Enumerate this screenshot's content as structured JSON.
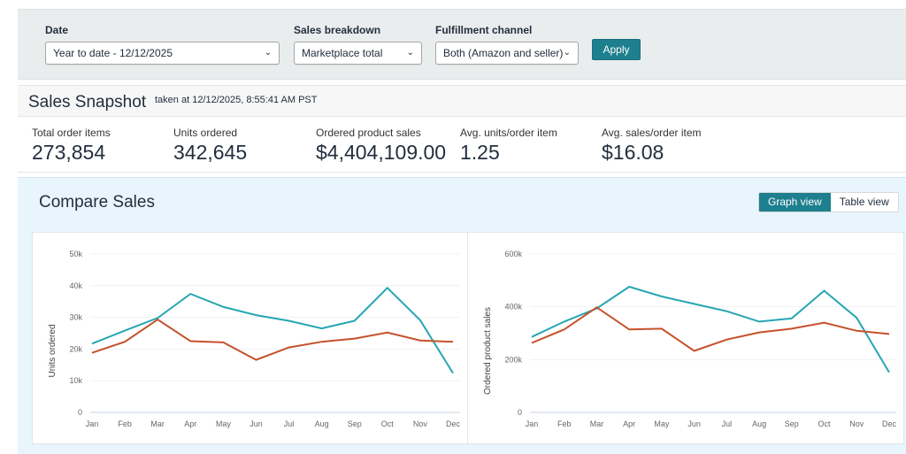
{
  "filters": {
    "date": {
      "label": "Date",
      "value": "Year to date - 12/12/2025"
    },
    "sales_breakdown": {
      "label": "Sales breakdown",
      "value": "Marketplace total"
    },
    "fulfillment_channel": {
      "label": "Fulfillment channel",
      "value": "Both (Amazon and seller)"
    },
    "apply_label": "Apply"
  },
  "snapshot": {
    "title": "Sales Snapshot",
    "taken_at": "taken at 12/12/2025, 8:55:41 AM PST",
    "metrics": [
      {
        "label": "Total order items",
        "value": "273,854"
      },
      {
        "label": "Units ordered",
        "value": "342,645"
      },
      {
        "label": "Ordered product sales",
        "value": "$4,404,109.00"
      },
      {
        "label": "Avg. units/order item",
        "value": "1.25"
      },
      {
        "label": "Avg. sales/order item",
        "value": "$16.08"
      }
    ]
  },
  "compare": {
    "title": "Compare Sales",
    "view_toggle": {
      "graph_label": "Graph view",
      "table_label": "Table view",
      "active": "graph"
    }
  },
  "colors": {
    "series_teal": "#26a6b3",
    "series_red": "#c5512b",
    "accent": "#1e7f8e"
  },
  "chart_data": [
    {
      "type": "line",
      "title": "",
      "xlabel": "",
      "ylabel": "Units ordered",
      "categories": [
        "Jan",
        "Feb",
        "Mar",
        "Apr",
        "May",
        "Jun",
        "Jul",
        "Aug",
        "Sep",
        "Oct",
        "Nov",
        "Dec"
      ],
      "ylim": [
        0,
        50000
      ],
      "yticks": [
        0,
        10000,
        20000,
        30000,
        40000,
        50000
      ],
      "ytick_labels": [
        "0",
        "10k",
        "20k",
        "30k",
        "40k",
        "50k"
      ],
      "grid": true,
      "series": [
        {
          "name": "Series 1 (teal)",
          "color": "#26a6b3",
          "values": [
            21700,
            25800,
            29800,
            37400,
            33300,
            30700,
            28900,
            26500,
            28900,
            39300,
            29100,
            12400
          ]
        },
        {
          "name": "Series 2 (red)",
          "color": "#c5512b",
          "values": [
            18800,
            22300,
            29300,
            22500,
            22100,
            16600,
            20500,
            22300,
            23300,
            25200,
            22700,
            22300
          ]
        }
      ]
    },
    {
      "type": "line",
      "title": "",
      "xlabel": "",
      "ylabel": "Ordered product sales",
      "categories": [
        "Jan",
        "Feb",
        "Mar",
        "Apr",
        "May",
        "Jun",
        "Jul",
        "Aug",
        "Sep",
        "Oct",
        "Nov",
        "Dec"
      ],
      "ylim": [
        0,
        600000
      ],
      "yticks": [
        0,
        200000,
        400000,
        600000
      ],
      "ytick_labels": [
        "0",
        "200k",
        "400k",
        "600k"
      ],
      "grid": true,
      "series": [
        {
          "name": "Series 1 (teal)",
          "color": "#26a6b3",
          "values": [
            286000,
            344000,
            394000,
            476000,
            439000,
            411000,
            383000,
            344000,
            356000,
            461000,
            358000,
            152000
          ]
        },
        {
          "name": "Series 2 (red)",
          "color": "#c5512b",
          "values": [
            263000,
            314000,
            398000,
            314000,
            317000,
            233000,
            276000,
            303000,
            317000,
            340000,
            309000,
            297000
          ]
        }
      ]
    }
  ]
}
